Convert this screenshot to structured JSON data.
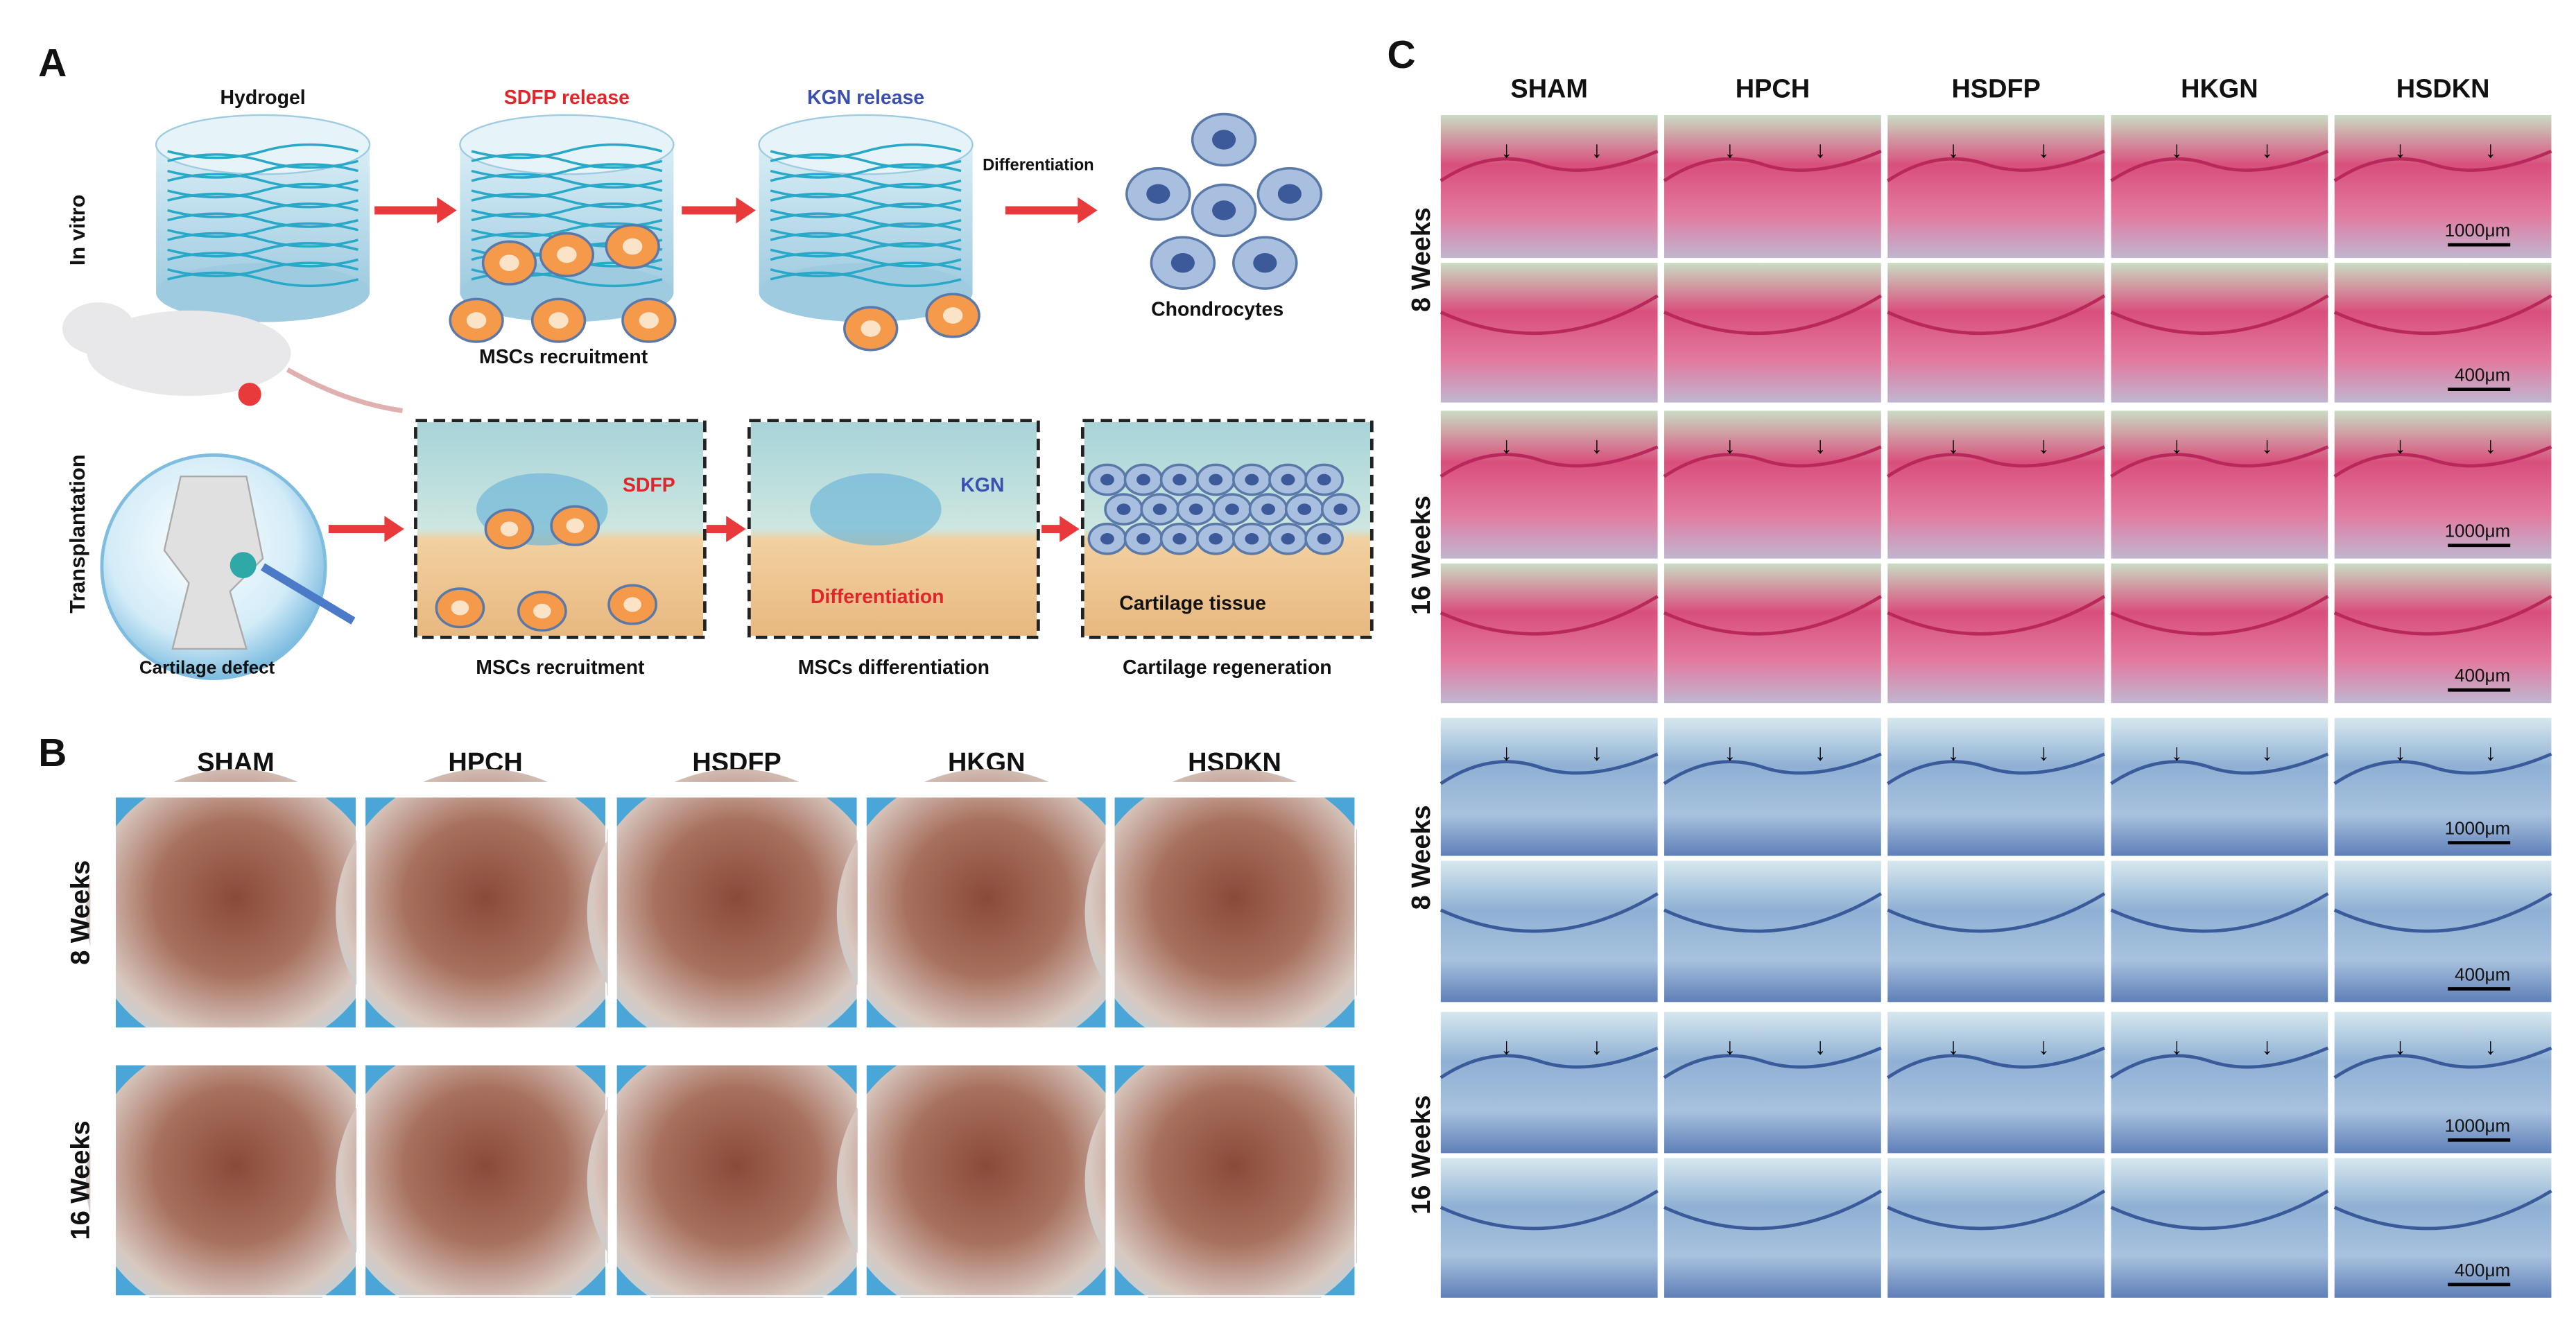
{
  "panel_a": {
    "label": "A",
    "row_labels": [
      "In vitro",
      "Transplantation"
    ],
    "in_vitro": {
      "stages": [
        "Hydrogel",
        "SDFP release",
        "KGN release"
      ],
      "step": "Differentiation",
      "result": "Chondrocytes",
      "caption": "MSCs recruitment"
    },
    "transplantation": {
      "defect": "Cartilage defect",
      "box_labels": [
        "SDFP",
        "KGN"
      ],
      "differentiation": "Differentiation",
      "tissue": "Cartilage tissue",
      "captions": [
        "MSCs recruitment",
        "MSCs differentiation",
        "Cartilage regeneration"
      ]
    }
  },
  "panel_b": {
    "label": "B",
    "groups": [
      "SHAM",
      "HPCH",
      "HSDFP",
      "HKGN",
      "HSDKN"
    ],
    "rows": [
      "8 Weeks",
      "16 Weeks"
    ]
  },
  "panel_c": {
    "label": "C",
    "groups": [
      "SHAM",
      "HPCH",
      "HSDFP",
      "HKGN",
      "HSDKN"
    ],
    "rows": [
      "8 Weeks",
      "16 Weeks",
      "8 Weeks",
      "16 Weeks"
    ],
    "scale_bars": [
      "1000μm",
      "400μm"
    ]
  }
}
